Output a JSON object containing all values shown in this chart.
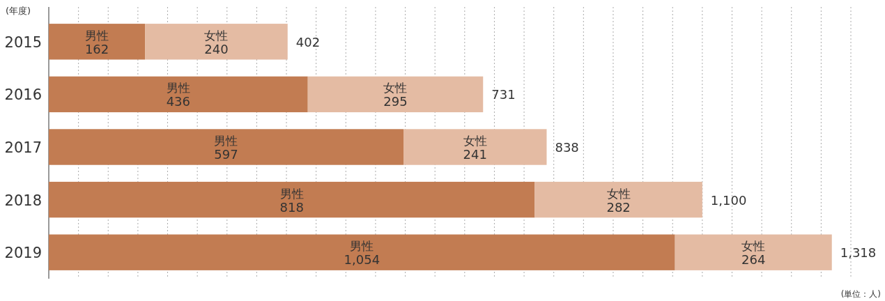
{
  "chart_data": {
    "type": "bar",
    "orientation": "horizontal",
    "stacked": true,
    "ylabel": "(年度)",
    "annotations": [
      "(単位：人)"
    ],
    "categories": [
      "2015",
      "2016",
      "2017",
      "2018",
      "2019"
    ],
    "series": [
      {
        "name": "男性",
        "color": "#c27c52",
        "values": [
          162,
          436,
          597,
          818,
          1054
        ],
        "value_labels": [
          "162",
          "436",
          "597",
          "818",
          "1,054"
        ]
      },
      {
        "name": "女性",
        "color": "#e4bba3",
        "values": [
          240,
          295,
          241,
          282,
          264
        ],
        "value_labels": [
          "240",
          "295",
          "241",
          "282",
          "264"
        ]
      }
    ],
    "totals": [
      "402",
      "731",
      "838",
      "1,100",
      "1,318"
    ],
    "xlim": [
      0,
      1350
    ],
    "xticks": [
      {
        "value": 50,
        "label": null
      },
      {
        "value": 100,
        "label": null
      },
      {
        "value": 150,
        "label": null
      },
      {
        "value": 200,
        "label": null
      },
      {
        "value": 250,
        "label": null
      },
      {
        "value": 300,
        "label": null
      },
      {
        "value": 350,
        "label": null
      },
      {
        "value": 400,
        "label": null
      },
      {
        "value": 450,
        "label": null
      },
      {
        "value": 500,
        "label": null
      },
      {
        "value": 550,
        "label": null
      },
      {
        "value": 600,
        "label": null
      },
      {
        "value": 650,
        "label": null
      },
      {
        "value": 700,
        "label": null
      },
      {
        "value": 750,
        "label": null
      },
      {
        "value": 800,
        "label": null
      },
      {
        "value": 850,
        "label": null
      },
      {
        "value": 900,
        "label": null
      },
      {
        "value": 950,
        "label": null
      },
      {
        "value": 1000,
        "label": null
      },
      {
        "value": 1050,
        "label": null
      },
      {
        "value": 1100,
        "label": null
      },
      {
        "value": 1150,
        "label": null
      },
      {
        "value": 1200,
        "label": null
      },
      {
        "value": 1250,
        "label": null
      },
      {
        "value": 1300,
        "label": null
      },
      {
        "value": 1350,
        "label": null
      }
    ],
    "tick_labels": "y",
    "grid": "x"
  }
}
